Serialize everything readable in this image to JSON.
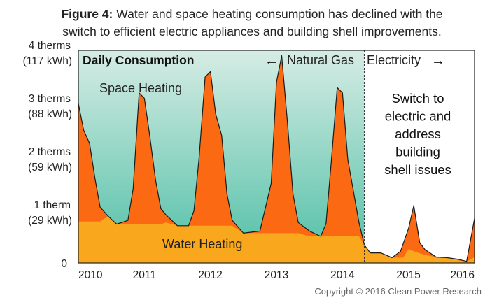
{
  "caption": {
    "label": "Figure 4:",
    "text": "Water and space heating consumption has declined with the",
    "line2": "switch to efficient electric appliances and building shell improvements."
  },
  "copyright": "Copyright © 2016 Clean Power Research",
  "chart_data": {
    "type": "area",
    "title": "Daily Consumption",
    "xlabel": "",
    "ylabel": "",
    "xlim": [
      2010,
      2016
    ],
    "ylim": [
      0,
      4
    ],
    "x_ticks": [
      "2010",
      "2011",
      "2012",
      "2013",
      "2014",
      "2015",
      "2016"
    ],
    "y_ticks": [
      {
        "value": 0,
        "label": "0",
        "sub": ""
      },
      {
        "value": 1,
        "label": "1 therm",
        "sub": "(29 kWh)"
      },
      {
        "value": 2,
        "label": "2 therms",
        "sub": "(59 kWh)"
      },
      {
        "value": 3,
        "label": "3 therms",
        "sub": "(88 kWh)"
      },
      {
        "value": 4,
        "label": "4 therms",
        "sub": "(117 kWh)"
      }
    ],
    "annotations": {
      "space_heating": "Space Heating",
      "water_heating": "Water Heating",
      "natural_gas": "Natural Gas",
      "electricity": "Electricity",
      "switch_note": [
        "Switch to",
        "electric and",
        "address",
        "building",
        "shell issues"
      ]
    },
    "switch_point": 2014.33,
    "series": [
      {
        "name": "Water Heating",
        "color": "#f9a81e",
        "values": [
          [
            2010.0,
            0.78
          ],
          [
            2010.33,
            0.78
          ],
          [
            2010.45,
            0.88
          ],
          [
            2010.58,
            0.73
          ],
          [
            2010.75,
            0.73
          ],
          [
            2010.83,
            0.73
          ],
          [
            2010.92,
            0.73
          ],
          [
            2011.25,
            0.73
          ],
          [
            2011.33,
            0.76
          ],
          [
            2011.5,
            0.7
          ],
          [
            2011.67,
            0.7
          ],
          [
            2011.83,
            0.7
          ],
          [
            2011.92,
            0.7
          ],
          [
            2012.33,
            0.7
          ],
          [
            2012.5,
            0.56
          ],
          [
            2012.75,
            0.56
          ],
          [
            2012.92,
            0.56
          ],
          [
            2013.0,
            0.56
          ],
          [
            2013.08,
            0.56
          ],
          [
            2013.33,
            0.56
          ],
          [
            2013.5,
            0.5
          ],
          [
            2013.67,
            0.5
          ],
          [
            2013.75,
            0.5
          ],
          [
            2013.83,
            0.5
          ],
          [
            2014.0,
            0.5
          ],
          [
            2014.25,
            0.5
          ],
          [
            2014.33,
            0.34
          ],
          [
            2014.42,
            0.19
          ],
          [
            2014.58,
            0.19
          ],
          [
            2014.75,
            0.1
          ],
          [
            2014.92,
            0.1
          ],
          [
            2015.0,
            0.26
          ],
          [
            2015.12,
            0.2
          ],
          [
            2015.25,
            0.15
          ],
          [
            2015.42,
            0.11
          ],
          [
            2015.58,
            0.1
          ],
          [
            2015.75,
            0.05
          ],
          [
            2015.88,
            0.03
          ],
          [
            2016.0,
            0.11
          ],
          [
            2016.08,
            0.14
          ]
        ]
      },
      {
        "name": "Space Heating",
        "color": "#fb6a12",
        "values": [
          [
            2010.0,
            3.0
          ],
          [
            2010.08,
            2.5
          ],
          [
            2010.17,
            2.25
          ],
          [
            2010.25,
            1.6
          ],
          [
            2010.33,
            1.05
          ],
          [
            2010.45,
            0.88
          ],
          [
            2010.58,
            0.73
          ],
          [
            2010.75,
            0.8
          ],
          [
            2010.83,
            1.4
          ],
          [
            2010.92,
            3.2
          ],
          [
            2011.0,
            3.1
          ],
          [
            2011.08,
            2.4
          ],
          [
            2011.17,
            1.55
          ],
          [
            2011.25,
            1.02
          ],
          [
            2011.33,
            0.9
          ],
          [
            2011.5,
            0.7
          ],
          [
            2011.67,
            0.7
          ],
          [
            2011.75,
            0.98
          ],
          [
            2011.83,
            2.0
          ],
          [
            2011.92,
            3.5
          ],
          [
            2012.0,
            3.6
          ],
          [
            2012.08,
            2.8
          ],
          [
            2012.17,
            2.4
          ],
          [
            2012.25,
            1.3
          ],
          [
            2012.33,
            0.8
          ],
          [
            2012.5,
            0.56
          ],
          [
            2012.75,
            0.6
          ],
          [
            2012.92,
            1.5
          ],
          [
            2013.0,
            3.4
          ],
          [
            2013.08,
            3.9
          ],
          [
            2013.17,
            2.6
          ],
          [
            2013.25,
            1.3
          ],
          [
            2013.33,
            0.76
          ],
          [
            2013.5,
            0.6
          ],
          [
            2013.67,
            0.5
          ],
          [
            2013.75,
            0.74
          ],
          [
            2013.83,
            1.9
          ],
          [
            2013.92,
            3.3
          ],
          [
            2014.0,
            3.2
          ],
          [
            2014.08,
            1.95
          ],
          [
            2014.25,
            0.76
          ],
          [
            2014.33,
            0.34
          ],
          [
            2014.42,
            0.19
          ],
          [
            2014.58,
            0.19
          ],
          [
            2014.75,
            0.1
          ],
          [
            2014.88,
            0.22
          ],
          [
            2015.0,
            0.65
          ],
          [
            2015.08,
            1.08
          ],
          [
            2015.17,
            0.38
          ],
          [
            2015.25,
            0.25
          ],
          [
            2015.42,
            0.11
          ],
          [
            2015.58,
            0.1
          ],
          [
            2015.75,
            0.07
          ],
          [
            2015.88,
            0.03
          ],
          [
            2016.0,
            0.84
          ],
          [
            2016.08,
            1.6
          ],
          [
            2016.17,
            1.4
          ]
        ]
      }
    ],
    "colors": {
      "gas_top": "#d6ece4",
      "gas_bottom": "#4fbfa6",
      "space": "#fb6a12",
      "water": "#f9a81e"
    }
  }
}
